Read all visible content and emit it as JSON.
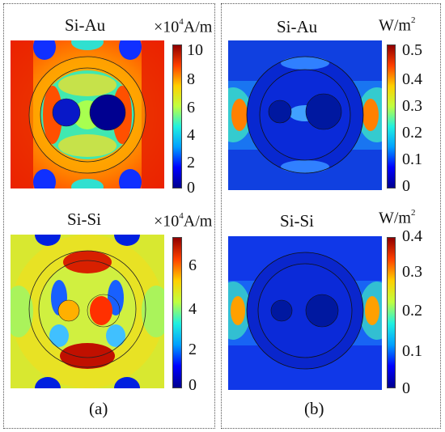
{
  "panels": {
    "a": {
      "caption": "(a)",
      "top": {
        "title": "Si-Au",
        "unit_prefix": "×10",
        "unit_exp": "4",
        "unit_suffix": "A/m",
        "ticks": [
          "10",
          "8",
          "6",
          "4",
          "2",
          "0"
        ]
      },
      "bottom": {
        "title": "Si-Si",
        "unit_prefix": "×10",
        "unit_exp": "4",
        "unit_suffix": "A/m",
        "ticks": [
          "6",
          "4",
          "2",
          "0"
        ]
      }
    },
    "b": {
      "caption": "(b)",
      "top": {
        "title": "Si-Au",
        "unit_main": "W/m",
        "unit_exp": "2",
        "ticks": [
          "0.5",
          "0.4",
          "0.3",
          "0.2",
          "0.1",
          "0"
        ]
      },
      "bottom": {
        "title": "Si-Si",
        "unit_main": "W/m",
        "unit_exp": "2",
        "ticks": [
          "0.4",
          "0.3",
          "0.2",
          "0.1",
          "0"
        ]
      }
    }
  },
  "colormap": [
    "#00008f",
    "#0000ff",
    "#00a0ff",
    "#20f0e0",
    "#c0ff40",
    "#ffd000",
    "#ff4000",
    "#8f0000"
  ]
}
